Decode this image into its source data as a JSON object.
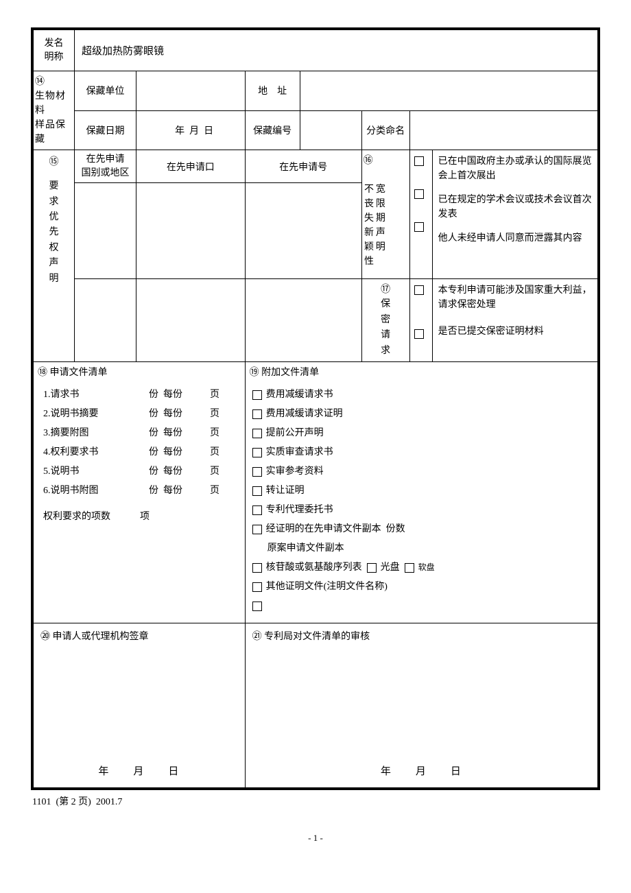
{
  "row_name": {
    "label1": "发名",
    "label2": "明称",
    "value": "超级加热防雾眼镜"
  },
  "sec14": {
    "num": "⑭",
    "title_v": "生物材料\n样品保藏",
    "unit_label": "保藏单位",
    "addr_label1": "地",
    "addr_label2": "址",
    "date_label": "保藏日期",
    "date_y": "年",
    "date_m": "月",
    "date_d": "日",
    "no_label": "保藏编号",
    "class_label": "分类命名"
  },
  "sec15": {
    "num": "⑮",
    "title_v": "要求优先权声明",
    "col1_l1": "在先申请",
    "col1_l2": "国别或地区",
    "col2": "在先申请口",
    "col3": "在先申请号"
  },
  "sec16": {
    "num": "⑯",
    "title_v1": "不丧失新颖性",
    "title_v2": "宽限期声明",
    "opt1": "已在中国政府主办或承认的国际展览会上首次展出",
    "opt2": "已在规定的学术会议或技术会议首次发表",
    "opt3": "他人未经申请人同意而泄露其内容"
  },
  "sec17": {
    "num": "⑰",
    "title_v": "保密请求",
    "opt1": "本专利申请可能涉及国家重大利益，请求保密处理",
    "opt2": "是否已提交保密证明材料"
  },
  "sec18": {
    "num": "⑱",
    "title": "申请文件清单",
    "items": [
      "1.请求书",
      "2.说明书摘要",
      "3.摘要附图",
      "4.权利要求书",
      "5.说明书",
      "6.说明书附图"
    ],
    "unit_fen": "份",
    "unit_meifen": "每份",
    "unit_ye": "页",
    "claims_label": "权利要求的项数",
    "claims_unit": "项"
  },
  "sec19": {
    "num": "⑲",
    "title": "附加文件清单",
    "items": [
      "费用减缓请求书",
      "费用减缓请求证明",
      "提前公开声明",
      "实质审查请求书",
      "实审参考资料",
      "转让证明",
      "专利代理委托书"
    ],
    "item_prior": "经证明的在先申请文件副本",
    "item_prior_unit": "份数",
    "item_orig": "原案申请文件副本",
    "item_seq": "核苷酸或氨基酸序列表",
    "seq_cd": "光盘",
    "seq_fd": "软盘",
    "item_other": "其他证明文件(注明文件名称)"
  },
  "sec20": {
    "num": "⑳",
    "title": "申请人或代理机构签章",
    "date": "年　　月　　日"
  },
  "sec21": {
    "num": "㉑",
    "title": "专利局对文件清单的审核",
    "date": "年　　月　　日"
  },
  "footer": {
    "code": "1101",
    "page": "(第 2 页)",
    "rev": "2001.7",
    "page_num": "- 1 -"
  }
}
